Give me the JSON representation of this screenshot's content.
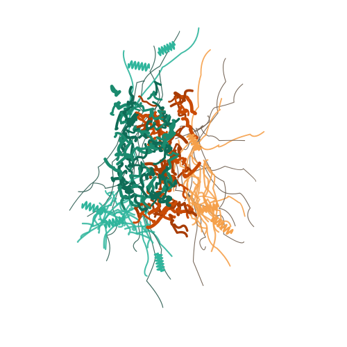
{
  "image": {
    "background": "#ffffff",
    "palette": {
      "chain_a_core": "#1a8a6e",
      "chain_a_dark": "#0f6b56",
      "chain_a_loops": "#2fb59c",
      "chain_a_wire": "#2e5d52",
      "chain_b_core": "#c94a05",
      "chain_b_dark": "#a83c04",
      "chain_b_loops": "#f5a04a",
      "chain_b_wire": "#6b5a4a"
    }
  }
}
